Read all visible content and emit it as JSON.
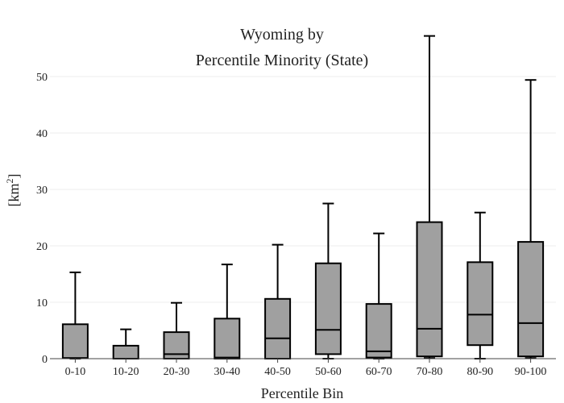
{
  "chart_data": {
    "type": "box",
    "title": [
      "Wyoming  by",
      "Percentile Minority (State)"
    ],
    "xlabel": "Percentile Bin",
    "ylabel": "[km",
    "ylabel_sup": "2",
    "ylabel_close": "]",
    "ylim": [
      0,
      57
    ],
    "yticks": [
      0,
      10,
      20,
      30,
      40,
      50
    ],
    "grid": true,
    "box_fill": "#a0a0a0",
    "stroke": "#000000",
    "categories": [
      "0-10",
      "10-20",
      "20-30",
      "30-40",
      "40-50",
      "50-60",
      "60-70",
      "70-80",
      "80-90",
      "90-100"
    ],
    "boxes": [
      {
        "min": 0.0,
        "q1": 0.1,
        "median": 0.1,
        "q3": 6.1,
        "max": 15.3
      },
      {
        "min": 0.0,
        "q1": 0.0,
        "median": 0.0,
        "q3": 2.3,
        "max": 5.2
      },
      {
        "min": 0.0,
        "q1": 0.0,
        "median": 0.8,
        "q3": 4.7,
        "max": 9.9
      },
      {
        "min": 0.0,
        "q1": 0.0,
        "median": 0.2,
        "q3": 7.1,
        "max": 16.7
      },
      {
        "min": 0.0,
        "q1": 0.0,
        "median": 3.6,
        "q3": 10.6,
        "max": 20.2
      },
      {
        "min": 0.0,
        "q1": 0.8,
        "median": 5.1,
        "q3": 16.9,
        "max": 27.5
      },
      {
        "min": 0.0,
        "q1": 0.2,
        "median": 1.3,
        "q3": 9.7,
        "max": 22.2
      },
      {
        "min": 0.1,
        "q1": 0.4,
        "median": 5.3,
        "q3": 24.2,
        "max": 57.2
      },
      {
        "min": 0.0,
        "q1": 2.4,
        "median": 7.8,
        "q3": 17.1,
        "max": 25.9
      },
      {
        "min": 0.1,
        "q1": 0.4,
        "median": 6.3,
        "q3": 20.7,
        "max": 49.4
      }
    ]
  }
}
